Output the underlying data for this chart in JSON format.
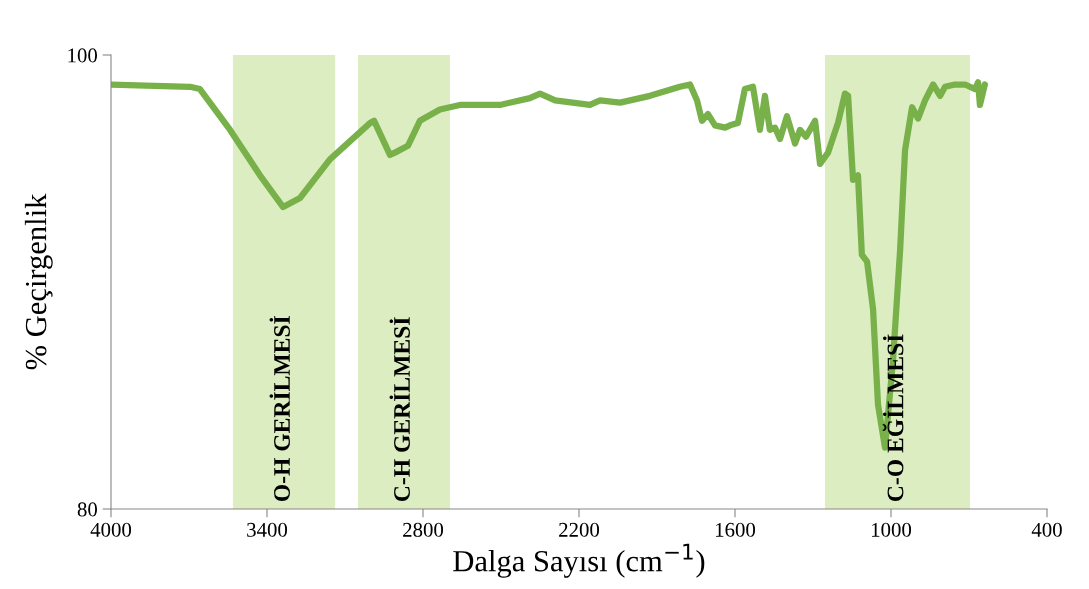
{
  "chart_data": {
    "type": "line",
    "xlabel": "Dalga Sayısı (cm$^{−1}$)",
    "ylabel": "% Geçirgenlik",
    "xlim": [
      4000,
      400
    ],
    "xticks": [
      4000,
      3400,
      2800,
      2200,
      1600,
      1000,
      400
    ],
    "ylim": [
      80,
      100
    ],
    "yticks": [
      80,
      100
    ],
    "grid": false,
    "legend": false,
    "marker": "none",
    "line_style": "solid",
    "x": [
      4000,
      3696,
      3658,
      3542,
      3427,
      3338,
      3273,
      3158,
      3004,
      2988,
      2927,
      2908,
      2858,
      2812,
      2735,
      2658,
      2504,
      2389,
      2350,
      2292,
      2158,
      2119,
      2042,
      1927,
      1812,
      1773,
      1746,
      1727,
      1704,
      1677,
      1638,
      1619,
      1589,
      1562,
      1531,
      1504,
      1485,
      1466,
      1446,
      1427,
      1400,
      1369,
      1350,
      1327,
      1292,
      1273,
      1242,
      1204,
      1177,
      1165,
      1146,
      1127,
      1112,
      1092,
      1069,
      1050,
      1023,
      992,
      965,
      946,
      919,
      896,
      869,
      838,
      811,
      792,
      754,
      715,
      677,
      665,
      658,
      639
    ],
    "series": [
      {
        "color": "#78b04a",
        "values": [
          98.7,
          98.6,
          98.5,
          96.7,
          94.7,
          93.3,
          93.7,
          95.4,
          97.0,
          97.1,
          95.6,
          95.7,
          96.0,
          97.1,
          97.6,
          97.8,
          97.8,
          98.1,
          98.3,
          98.0,
          97.8,
          98.0,
          97.9,
          98.2,
          98.6,
          98.7,
          98.0,
          97.1,
          97.4,
          96.9,
          96.8,
          96.9,
          97.0,
          98.5,
          98.6,
          96.7,
          98.2,
          96.7,
          96.8,
          96.3,
          97.3,
          96.1,
          96.7,
          96.4,
          97.1,
          95.2,
          95.7,
          97.0,
          98.3,
          98.2,
          94.5,
          94.7,
          91.2,
          90.9,
          88.8,
          84.6,
          82.7,
          86.6,
          91.4,
          95.8,
          97.7,
          97.2,
          98.0,
          98.7,
          98.2,
          98.6,
          98.7,
          98.7,
          98.5,
          98.8,
          97.8,
          98.7
        ]
      }
    ],
    "bands": [
      {
        "axis": "x",
        "from": 3531,
        "to": 3138,
        "label": "O-H GERİLMESİ",
        "color": "#dcedc1"
      },
      {
        "axis": "x",
        "from": 3050,
        "to": 2696,
        "label": "C-H GERİLMESİ",
        "color": "#dcedc1"
      },
      {
        "axis": "x",
        "from": 1254,
        "to": 696,
        "label": "C-O EĞİLMESİ",
        "color": "#dcedc1"
      }
    ]
  }
}
